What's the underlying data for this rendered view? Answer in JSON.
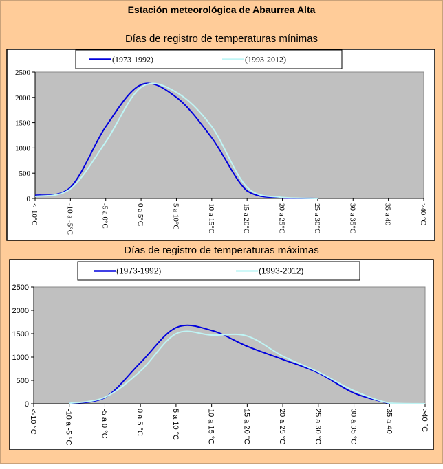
{
  "title": "Estación meteorológica de Abaurrea Alta",
  "colors": {
    "background": "#FFCC99",
    "plot": "#C0C0C0",
    "series1": "#0000DD",
    "series2": "#BFF5F5"
  },
  "chart_data": [
    {
      "type": "line",
      "title": "Días de registro de temperaturas mínimas",
      "ylim": [
        0,
        2500
      ],
      "yticks": [
        0,
        500,
        1000,
        1500,
        2000,
        2500
      ],
      "categories": [
        "<-10°C",
        "-10 a -5°C",
        "-5 a 0°C",
        "0 a 5°C",
        "5 a 10°C",
        "10 a 15°C",
        "15 a 20°C",
        "20 a 25°C",
        "25 a 30°C",
        "30 a 35°C",
        "35 a 40",
        ">40 °C"
      ],
      "series": [
        {
          "name": "(1973-1992)",
          "values": [
            60,
            220,
            1420,
            2250,
            2000,
            1200,
            150,
            10,
            0,
            null,
            null,
            null
          ]
        },
        {
          "name": "(1993-2012)",
          "values": [
            40,
            190,
            1120,
            2200,
            2100,
            1420,
            220,
            20,
            0,
            null,
            null,
            null
          ]
        }
      ],
      "legend": "top"
    },
    {
      "type": "line",
      "title": "Días de registro de temperaturas máximas",
      "ylim": [
        0,
        2500
      ],
      "yticks": [
        0,
        500,
        1000,
        1500,
        2000,
        2500
      ],
      "categories": [
        "<-10 °C",
        "-10 a -5 °C",
        "-5 a 0 °C",
        "0 a 5 °C",
        "5 a 10 °C",
        "10 a 15 °C",
        "15 a 20 °C",
        "20 a 25 °C",
        "25 a 30 °C",
        "30 a 35 °C",
        "35 a 40",
        ">40 °C"
      ],
      "series": [
        {
          "name": "(1973-1992)",
          "values": [
            null,
            10,
            130,
            880,
            1630,
            1570,
            1230,
            950,
            660,
            230,
            5,
            null
          ]
        },
        {
          "name": "(1993-2012)",
          "values": [
            null,
            10,
            140,
            700,
            1500,
            1470,
            1450,
            1020,
            680,
            280,
            15,
            0
          ]
        }
      ],
      "legend": "top"
    }
  ]
}
